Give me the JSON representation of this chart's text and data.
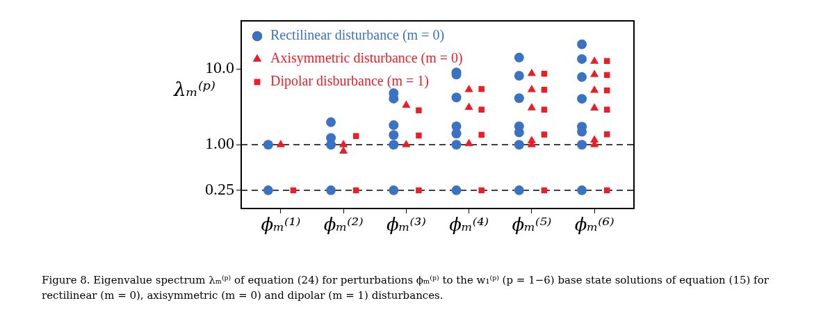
{
  "chart_data": {
    "type": "scatter",
    "ylabel": "λₘ⁽ᵖ⁾",
    "categories": [
      "ϕₘ⁽¹⁾",
      "ϕₘ⁽²⁾",
      "ϕₘ⁽³⁾",
      "ϕₘ⁽⁴⁾",
      "ϕₘ⁽⁵⁾",
      "ϕₘ⁽⁶⁾"
    ],
    "log": "y",
    "ylim": [
      0.144,
      43
    ],
    "yticks": [
      0.25,
      {
        "value": 1,
        "label": "1.00"
      },
      {
        "value": 10,
        "label": "10.0"
      }
    ],
    "grid": false,
    "legend": "top left",
    "series": [
      {
        "name": "Rectilinear disturbance (m = 0)",
        "color": "#3a72c4",
        "marker": "circle",
        "x": [
          "ϕₘ⁽¹⁾",
          "ϕₘ⁽¹⁾",
          "ϕₘ⁽²⁾",
          "ϕₘ⁽²⁾",
          "ϕₘ⁽²⁾",
          "ϕₘ⁽²⁾",
          "ϕₘ⁽³⁾",
          "ϕₘ⁽³⁾",
          "ϕₘ⁽³⁾",
          "ϕₘ⁽³⁾",
          "ϕₘ⁽³⁾",
          "ϕₘ⁽³⁾",
          "ϕₘ⁽⁴⁾",
          "ϕₘ⁽⁴⁾",
          "ϕₘ⁽⁴⁾",
          "ϕₘ⁽⁴⁾",
          "ϕₘ⁽⁴⁾",
          "ϕₘ⁽⁴⁾",
          "ϕₘ⁽⁴⁾",
          "ϕₘ⁽⁵⁾",
          "ϕₘ⁽⁵⁾",
          "ϕₘ⁽⁵⁾",
          "ϕₘ⁽⁵⁾",
          "ϕₘ⁽⁵⁾",
          "ϕₘ⁽⁵⁾",
          "ϕₘ⁽⁵⁾",
          "ϕₘ⁽⁶⁾",
          "ϕₘ⁽⁶⁾",
          "ϕₘ⁽⁶⁾",
          "ϕₘ⁽⁶⁾",
          "ϕₘ⁽⁶⁾",
          "ϕₘ⁽⁶⁾",
          "ϕₘ⁽⁶⁾",
          "ϕₘ⁽⁶⁾"
        ],
        "values": [
          1,
          0.25,
          1.98,
          1.23,
          1,
          0.25,
          4.8,
          4.05,
          1.81,
          1.34,
          1,
          0.25,
          8.98,
          8.4,
          4.2,
          1.75,
          1.4,
          1,
          0.25,
          14.1,
          8.12,
          4.11,
          1.75,
          1.45,
          1,
          0.25,
          21.1,
          13.5,
          7.8,
          4.03,
          1.73,
          1.48,
          1,
          0.25
        ]
      },
      {
        "name": "Axisymmetric disturbance (m = 0)",
        "color": "#ee1c25",
        "marker": "triangle",
        "x": [
          "ϕₘ⁽¹⁾",
          "ϕₘ⁽²⁾",
          "ϕₘ⁽²⁾",
          "ϕₘ⁽³⁾",
          "ϕₘ⁽³⁾",
          "ϕₘ⁽⁴⁾",
          "ϕₘ⁽⁴⁾",
          "ϕₘ⁽⁴⁾",
          "ϕₘ⁽⁵⁾",
          "ϕₘ⁽⁵⁾",
          "ϕₘ⁽⁵⁾",
          "ϕₘ⁽⁵⁾",
          "ϕₘ⁽⁵⁾",
          "ϕₘ⁽⁶⁾",
          "ϕₘ⁽⁶⁾",
          "ϕₘ⁽⁶⁾",
          "ϕₘ⁽⁶⁾",
          "ϕₘ⁽⁶⁾",
          "ϕₘ⁽⁶⁾"
        ],
        "values": [
          1,
          1,
          0.82,
          3.31,
          1,
          5.31,
          3.1,
          1.03,
          8.7,
          5.31,
          3.06,
          1.13,
          1,
          12.6,
          8.4,
          5.21,
          3.04,
          1.15,
          1
        ]
      },
      {
        "name": "Dipolar disburbance (m = 1)",
        "color": "#ee1c25",
        "marker": "square",
        "x": [
          "ϕₘ⁽¹⁾",
          "ϕₘ⁽²⁾",
          "ϕₘ⁽²⁾",
          "ϕₘ⁽³⁾",
          "ϕₘ⁽³⁾",
          "ϕₘ⁽³⁾",
          "ϕₘ⁽⁴⁾",
          "ϕₘ⁽⁴⁾",
          "ϕₘ⁽⁴⁾",
          "ϕₘ⁽⁴⁾",
          "ϕₘ⁽⁵⁾",
          "ϕₘ⁽⁵⁾",
          "ϕₘ⁽⁵⁾",
          "ϕₘ⁽⁵⁾",
          "ϕₘ⁽⁵⁾",
          "ϕₘ⁽⁶⁾",
          "ϕₘ⁽⁶⁾",
          "ϕₘ⁽⁶⁾",
          "ϕₘ⁽⁶⁾",
          "ϕₘ⁽⁶⁾",
          "ϕₘ⁽⁶⁾"
        ],
        "values": [
          0.25,
          1.3,
          0.25,
          2.84,
          1.32,
          0.25,
          5.42,
          2.9,
          1.35,
          0.25,
          8.63,
          5.3,
          2.9,
          1.36,
          0.25,
          12.7,
          8.3,
          5.2,
          2.9,
          1.37,
          0.25
        ]
      }
    ],
    "ref_lines": [
      {
        "axis": "y",
        "value": 1,
        "line_style": "dashed",
        "color": "#000000"
      },
      {
        "axis": "y",
        "value": 0.25,
        "line_style": "dashed",
        "color": "#000000"
      }
    ],
    "annotations": [
      "Figure 8. Eigenvalue spectrum λₘ⁽ᵖ⁾ of equation (24) for perturbations ϕₘ⁽ᵖ⁾ to the w₁⁽ᵖ⁾ (p = 1−6) base state solutions of equation (15) for rectilinear (m = 0), axisymmetric (m = 0) and dipolar (m = 1) disturbances."
    ]
  }
}
